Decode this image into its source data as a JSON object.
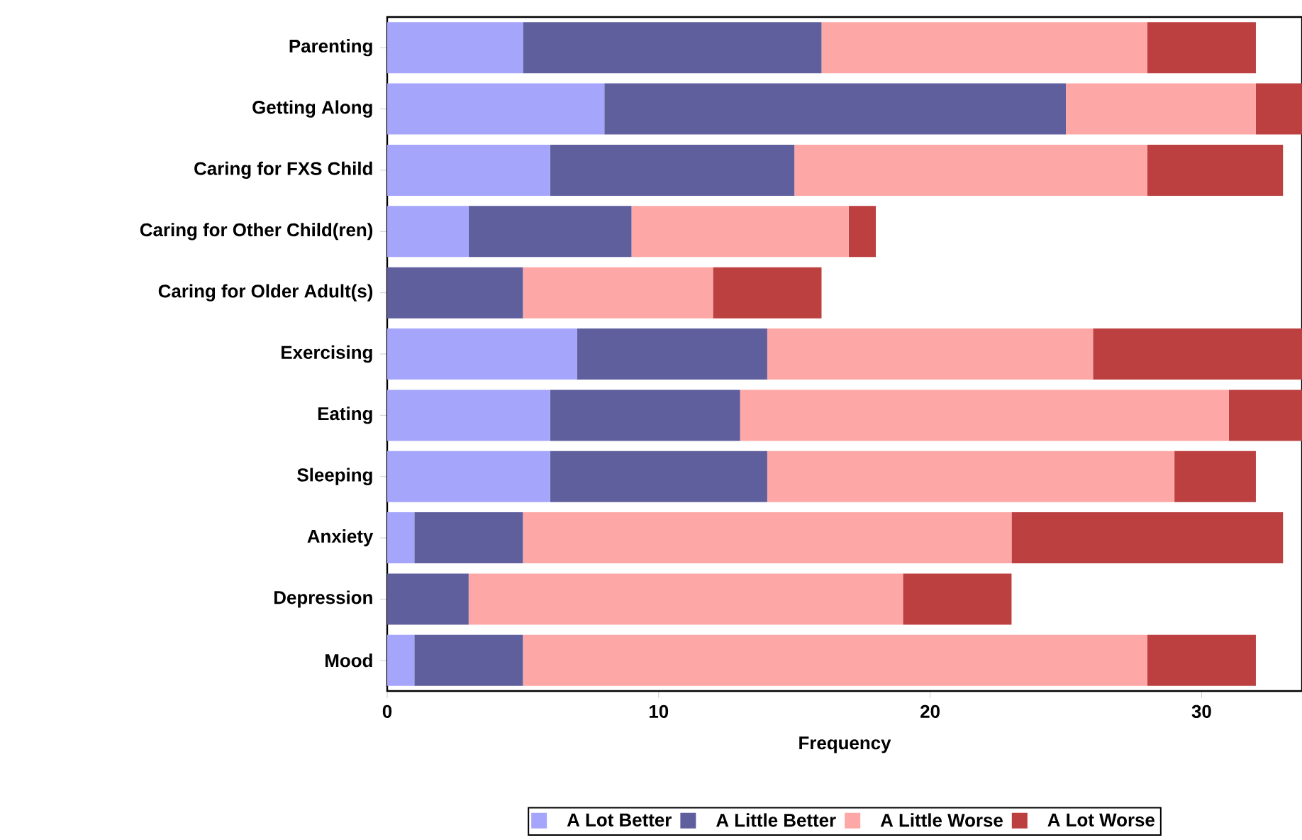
{
  "chart_data": {
    "type": "bar",
    "orientation": "horizontal",
    "stacked": true,
    "xlabel": "Frequency",
    "categories": [
      "Parenting",
      "Getting Along",
      "Caring for FXS Child",
      "Caring for Other Child(ren)",
      "Caring for Older Adult(s)",
      "Exercising",
      "Eating",
      "Sleeping",
      "Anxiety",
      "Depression",
      "Mood"
    ],
    "series": [
      {
        "name": "A Lot Better",
        "color": "#a5a6fb",
        "values": [
          5,
          8,
          6,
          3,
          0,
          7,
          6,
          6,
          1,
          0,
          1
        ]
      },
      {
        "name": "A Little Better",
        "color": "#5f5f9e",
        "values": [
          11,
          17,
          9,
          6,
          5,
          7,
          7,
          8,
          4,
          3,
          4
        ]
      },
      {
        "name": "A Little Worse",
        "color": "#fea7a7",
        "values": [
          12,
          7,
          13,
          8,
          7,
          12,
          18,
          15,
          18,
          16,
          23
        ]
      },
      {
        "name": "A Lot Worse",
        "color": "#bc4040",
        "values": [
          4,
          1.7,
          5,
          1,
          4,
          7.7,
          2.7,
          3,
          10,
          4,
          4
        ]
      }
    ],
    "xlim": [
      0,
      33.7
    ],
    "xticks": [
      0,
      10,
      20,
      30
    ],
    "legend": "bottom"
  }
}
